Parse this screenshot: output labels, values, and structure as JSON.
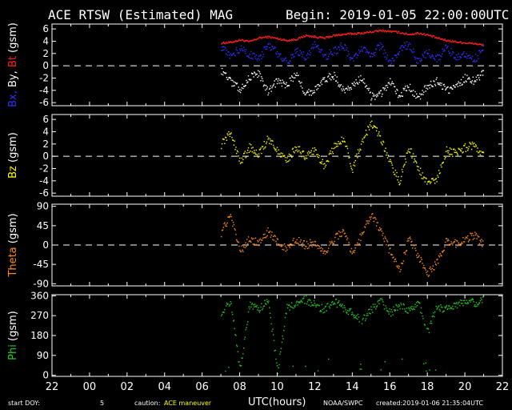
{
  "header": {
    "title": "ACE RTSW (Estimated) MAG",
    "begin": "Begin: 2019-01-05 22:00:00UTC"
  },
  "footer": {
    "start_doy_label": "start DOY:",
    "start_doy_value": "5",
    "caution_label": "caution:",
    "caution_value": "ACE maneuver",
    "xlabel": "UTC(hours)",
    "credit": "NOAA/SWPC",
    "created": "created:2019-01-06 21:35:04UTC"
  },
  "colors": {
    "background": "#000000",
    "axes": "#ffffff",
    "bx": "#3030ff",
    "by": "#ffffff",
    "bt": "#ff2020",
    "bz": "#ffff00",
    "theta": "#ff8c1a",
    "phi": "#22cc22"
  },
  "chart_data": [
    {
      "type": "scatter",
      "ylabel_parts": [
        "Bx,",
        "By,",
        "Bt",
        "(gsm)"
      ],
      "ylim": [
        -6.5,
        6.8
      ],
      "yticks": [
        6,
        4,
        2,
        0,
        -2,
        -4,
        -6
      ],
      "zero_line": true,
      "x_hours": [
        7.0,
        7.5,
        8.0,
        8.5,
        9.0,
        9.5,
        10.0,
        10.5,
        11.0,
        11.5,
        12.0,
        12.5,
        13.0,
        13.5,
        14.0,
        14.5,
        15.0,
        15.5,
        16.0,
        16.5,
        17.0,
        17.5,
        18.0,
        18.5,
        19.0,
        19.5,
        20.0,
        20.5,
        21.0
      ],
      "series": [
        {
          "name": "Bt",
          "values": [
            3.8,
            3.9,
            4.3,
            4.0,
            4.6,
            4.8,
            4.5,
            4.2,
            4.4,
            5.0,
            4.8,
            4.6,
            5.0,
            5.2,
            5.3,
            5.4,
            5.6,
            5.8,
            5.7,
            5.5,
            5.2,
            5.4,
            5.1,
            4.6,
            4.2,
            4.0,
            3.8,
            3.7,
            3.4
          ]
        },
        {
          "name": "Bx",
          "values": [
            3.2,
            1.5,
            3.0,
            2.0,
            1.0,
            3.6,
            2.2,
            0.6,
            2.6,
            1.4,
            3.8,
            1.6,
            2.4,
            3.4,
            0.8,
            2.8,
            1.8,
            3.4,
            0.4,
            2.6,
            3.6,
            0.6,
            2.2,
            1.2,
            3.0,
            1.6,
            2.0,
            1.2,
            2.8
          ]
        },
        {
          "name": "By",
          "values": [
            -0.6,
            -2.4,
            -3.8,
            -1.8,
            -1.2,
            -4.2,
            -2.4,
            -3.0,
            -1.2,
            -4.6,
            -3.8,
            -2.2,
            -1.4,
            -4.0,
            -3.0,
            -2.0,
            -5.0,
            -4.4,
            -2.6,
            -4.8,
            -3.2,
            -5.4,
            -3.0,
            -2.4,
            -4.0,
            -3.6,
            -1.8,
            -2.4,
            -0.8
          ]
        }
      ]
    },
    {
      "type": "scatter",
      "ylabel_parts": [
        "Bz",
        "(gsm)"
      ],
      "ylim": [
        -6.5,
        6.8
      ],
      "yticks": [
        6,
        4,
        2,
        0,
        -2,
        -4,
        -6
      ],
      "zero_line": true,
      "x_hours": [
        7.0,
        7.5,
        8.0,
        8.5,
        9.0,
        9.5,
        10.0,
        10.5,
        11.0,
        11.5,
        12.0,
        12.5,
        13.0,
        13.5,
        14.0,
        14.5,
        15.0,
        15.5,
        16.0,
        16.5,
        17.0,
        17.5,
        18.0,
        18.5,
        19.0,
        19.5,
        20.0,
        20.5,
        21.0
      ],
      "series": [
        {
          "name": "Bz",
          "values": [
            2.0,
            4.0,
            -1.0,
            1.5,
            0.5,
            3.0,
            1.0,
            -0.5,
            1.5,
            0.0,
            1.0,
            -1.5,
            1.5,
            3.0,
            -2.0,
            2.5,
            5.5,
            3.0,
            -1.0,
            -4.0,
            1.5,
            -2.0,
            -4.5,
            -3.5,
            1.0,
            0.5,
            1.5,
            2.0,
            0.0
          ]
        }
      ]
    },
    {
      "type": "scatter",
      "ylabel_parts": [
        "Theta",
        "(gsm)"
      ],
      "ylim": [
        -95,
        95
      ],
      "yticks": [
        90,
        45,
        0,
        -45,
        -90
      ],
      "zero_line": true,
      "x_hours": [
        7.0,
        7.5,
        8.0,
        8.5,
        9.0,
        9.5,
        10.0,
        10.5,
        11.0,
        11.5,
        12.0,
        12.5,
        13.0,
        13.5,
        14.0,
        14.5,
        15.0,
        15.5,
        16.0,
        16.5,
        17.0,
        17.5,
        18.0,
        18.5,
        19.0,
        19.5,
        20.0,
        20.5,
        21.0
      ],
      "series": [
        {
          "name": "Theta",
          "values": [
            30,
            70,
            -15,
            15,
            5,
            35,
            10,
            -10,
            15,
            0,
            10,
            -20,
            15,
            35,
            -25,
            30,
            75,
            35,
            -15,
            -55,
            15,
            -25,
            -65,
            -40,
            10,
            5,
            15,
            25,
            0
          ]
        }
      ]
    },
    {
      "type": "scatter",
      "ylabel_parts": [
        "Phi",
        "(gsm)"
      ],
      "ylim": [
        -5,
        365
      ],
      "yticks": [
        360,
        270,
        180,
        90,
        0
      ],
      "zero_line": false,
      "x_hours": [
        7.0,
        7.5,
        8.0,
        8.5,
        9.0,
        9.5,
        10.0,
        10.5,
        11.0,
        11.5,
        12.0,
        12.5,
        13.0,
        13.5,
        14.0,
        14.5,
        15.0,
        15.5,
        16.0,
        16.5,
        17.0,
        17.5,
        18.0,
        18.5,
        19.0,
        19.5,
        20.0,
        20.5,
        21.0
      ],
      "series": [
        {
          "name": "Phi",
          "values": [
            290,
            340,
            20,
            320,
            300,
            350,
            15,
            310,
            330,
            345,
            320,
            300,
            335,
            310,
            280,
            250,
            300,
            340,
            280,
            320,
            290,
            330,
            200,
            310,
            300,
            320,
            340,
            330,
            350
          ]
        }
      ]
    }
  ],
  "xaxis": {
    "tick_labels": [
      "22",
      "00",
      "02",
      "04",
      "06",
      "08",
      "10",
      "12",
      "14",
      "16",
      "18",
      "20",
      "22"
    ],
    "range_hours_from_begin": [
      0,
      24
    ]
  }
}
